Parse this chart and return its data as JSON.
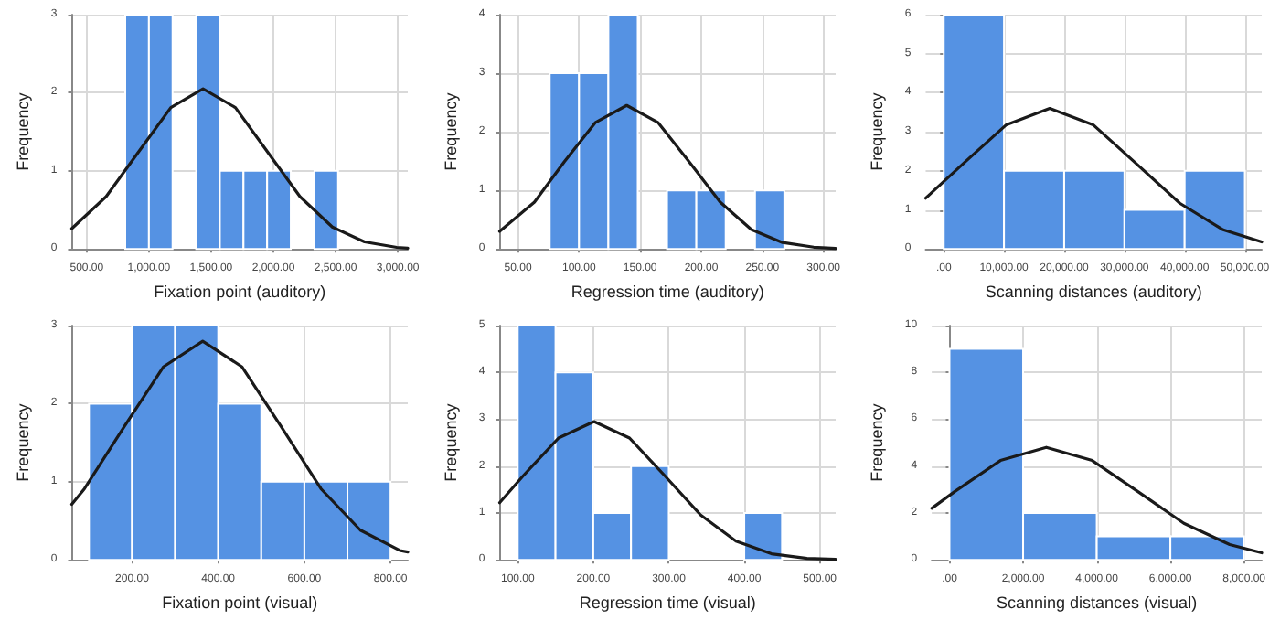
{
  "chart_data": [
    {
      "type": "histogram",
      "xlabel": "Fixation point (auditory)",
      "ylabel": "Frequency",
      "color": "#5592e3",
      "marker": "none",
      "grid": true,
      "bins": [
        810,
        1000,
        1190,
        1380,
        1570,
        1760,
        1950,
        2140,
        2330,
        2520
      ],
      "values": [
        3,
        3,
        0,
        3,
        1,
        1,
        1,
        0,
        1
      ],
      "series": [
        {
          "type": "line",
          "color": "#1a1a1a",
          "x": [
            380,
            656,
            916,
            1176,
            1435,
            1695,
            1954,
            2214,
            2474,
            2733,
            2992,
            3080
          ],
          "values": [
            0.26,
            0.67,
            1.24,
            1.81,
            2.05,
            1.81,
            1.24,
            0.67,
            0.28,
            0.09,
            0.02,
            0.01
          ]
        }
      ],
      "xlim": [
        380,
        3080
      ],
      "xticks": [
        {
          "value": 500,
          "label": "500.00"
        },
        {
          "value": 1000,
          "label": "1,000.00"
        },
        {
          "value": 1500,
          "label": "1,500.00"
        },
        {
          "value": 2000,
          "label": "2,000.00"
        },
        {
          "value": 2500,
          "label": "2,500.00"
        },
        {
          "value": 3000,
          "label": "3,000.00"
        }
      ],
      "ylim": [
        0,
        3
      ],
      "yticks": [
        0,
        1,
        2,
        3
      ]
    },
    {
      "type": "histogram",
      "xlabel": "Regression time (auditory)",
      "ylabel": "Frequency",
      "color": "#5592e3",
      "marker": "none",
      "grid": true,
      "bins": [
        76,
        100,
        124,
        148,
        172,
        196,
        220,
        244,
        268
      ],
      "values": [
        3,
        3,
        4,
        0,
        1,
        1,
        0,
        1
      ],
      "series": [
        {
          "type": "line",
          "color": "#1a1a1a",
          "x": [
            35,
            63.5,
            88,
            113.5,
            139,
            164.5,
            190,
            215.5,
            241,
            266.5,
            292,
            310
          ],
          "values": [
            0.3,
            0.8,
            1.49,
            2.16,
            2.45,
            2.16,
            1.49,
            0.8,
            0.33,
            0.11,
            0.03,
            0.01
          ]
        }
      ],
      "xlim": [
        35,
        310
      ],
      "xticks": [
        {
          "value": 50,
          "label": "50.00"
        },
        {
          "value": 100,
          "label": "100.00"
        },
        {
          "value": 150,
          "label": "150.00"
        },
        {
          "value": 200,
          "label": "200.00"
        },
        {
          "value": 250,
          "label": "250.00"
        },
        {
          "value": 300,
          "label": "300.00"
        }
      ],
      "ylim": [
        0,
        4
      ],
      "yticks": [
        0,
        1,
        2,
        3,
        4
      ]
    },
    {
      "type": "histogram",
      "xlabel": "Scanning distances (auditory)",
      "ylabel": "Frequency",
      "color": "#5592e3",
      "marker": "none",
      "grid": true,
      "bins": [
        0,
        10000,
        20000,
        30000,
        40000,
        50000
      ],
      "values": [
        6,
        2,
        2,
        1,
        2
      ],
      "series": [
        {
          "type": "line",
          "color": "#1a1a1a",
          "x": [
            -3000,
            3200,
            10400,
            17600,
            24800,
            32000,
            39200,
            46400,
            52800
          ],
          "values": [
            1.3,
            2.18,
            3.18,
            3.6,
            3.18,
            2.18,
            1.17,
            0.49,
            0.18
          ]
        }
      ],
      "xlim": [
        -3000,
        52800
      ],
      "xticks": [
        {
          "value": 0,
          "label": ".00"
        },
        {
          "value": 10000,
          "label": "10,000.00"
        },
        {
          "value": 20000,
          "label": "20,000.00"
        },
        {
          "value": 30000,
          "label": "30,000.00"
        },
        {
          "value": 40000,
          "label": "40,000.00"
        },
        {
          "value": 50000,
          "label": "50,000.00"
        }
      ],
      "ylim": [
        0,
        6
      ],
      "yticks": [
        0,
        1,
        2,
        3,
        4,
        5,
        6
      ]
    },
    {
      "type": "histogram",
      "xlabel": "Fixation point (visual)",
      "ylabel": "Frequency",
      "color": "#5592e3",
      "marker": "none",
      "grid": true,
      "bins": [
        100,
        200,
        300,
        400,
        500,
        600,
        700,
        800
      ],
      "values": [
        2,
        3,
        3,
        2,
        1,
        1,
        1
      ],
      "series": [
        {
          "type": "line",
          "color": "#1a1a1a",
          "x": [
            60,
            89.5,
            181,
            272.5,
            364,
            455.5,
            547,
            638.5,
            730,
            821.5,
            840
          ],
          "values": [
            0.71,
            0.91,
            1.7,
            2.47,
            2.8,
            2.47,
            1.7,
            0.91,
            0.38,
            0.12,
            0.1
          ]
        }
      ],
      "xlim": [
        60,
        840
      ],
      "xticks": [
        {
          "value": 200,
          "label": "200.00"
        },
        {
          "value": 400,
          "label": "400.00"
        },
        {
          "value": 600,
          "label": "600.00"
        },
        {
          "value": 800,
          "label": "800.00"
        }
      ],
      "ylim": [
        0,
        3
      ],
      "yticks": [
        0,
        1,
        2,
        3
      ]
    },
    {
      "type": "histogram",
      "xlabel": "Regression time (visual)",
      "ylabel": "Frequency",
      "color": "#5592e3",
      "marker": "none",
      "grid": true,
      "bins": [
        100,
        150,
        200,
        250,
        300,
        350,
        400,
        450
      ],
      "values": [
        5,
        4,
        1,
        2,
        0,
        0,
        1
      ],
      "series": [
        {
          "type": "line",
          "color": "#1a1a1a",
          "x": [
            76,
            107,
            154,
            201,
            248,
            295,
            342,
            389,
            436,
            483,
            521
          ],
          "values": [
            1.22,
            1.79,
            2.6,
            2.95,
            2.6,
            1.79,
            0.96,
            0.4,
            0.13,
            0.03,
            0.01
          ]
        }
      ],
      "xlim": [
        76,
        521
      ],
      "xticks": [
        {
          "value": 100,
          "label": "100.00"
        },
        {
          "value": 200,
          "label": "200.00"
        },
        {
          "value": 300,
          "label": "300.00"
        },
        {
          "value": 400,
          "label": "400.00"
        },
        {
          "value": 500,
          "label": "500.00"
        }
      ],
      "ylim": [
        0,
        5
      ],
      "yticks": [
        0,
        1,
        2,
        3,
        4,
        5
      ]
    },
    {
      "type": "histogram",
      "xlabel": "Scanning distances (visual)",
      "ylabel": "Frequency",
      "color": "#5592e3",
      "marker": "none",
      "grid": true,
      "bins": [
        0,
        2000,
        4000,
        6000,
        8000
      ],
      "values": [
        9,
        2,
        1,
        1
      ],
      "series": [
        {
          "type": "line",
          "color": "#1a1a1a",
          "x": [
            -480,
            140,
            1385,
            2630,
            3875,
            5120,
            6365,
            7610,
            8480
          ],
          "values": [
            2.2,
            2.91,
            4.24,
            4.8,
            4.24,
            2.91,
            1.56,
            0.65,
            0.3
          ]
        }
      ],
      "xlim": [
        -480,
        8480
      ],
      "xticks": [
        {
          "value": 0,
          "label": ".00"
        },
        {
          "value": 2000,
          "label": "2,000.00"
        },
        {
          "value": 4000,
          "label": "4,000.00"
        },
        {
          "value": 6000,
          "label": "6,000.00"
        },
        {
          "value": 8000,
          "label": "8,000.00"
        }
      ],
      "ylim": [
        0,
        10
      ],
      "yticks": [
        0,
        2,
        4,
        6,
        8,
        10
      ]
    }
  ]
}
